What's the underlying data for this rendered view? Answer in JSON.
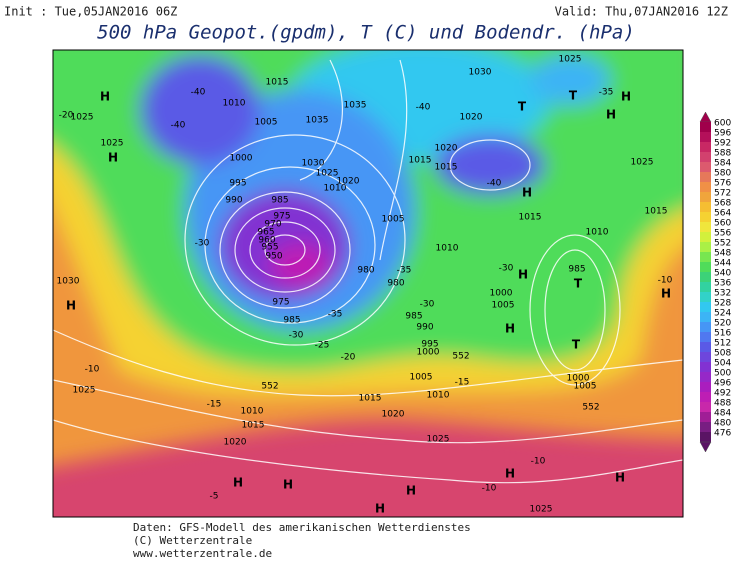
{
  "header": {
    "init": "Init : Tue,05JAN2016 06Z",
    "valid": "Valid: Thu,07JAN2016 12Z",
    "title": "500 hPa Geopot.(gpdm), T (C) und Bodendr. (hPa)"
  },
  "colorbar": {
    "levels": [
      600,
      596,
      592,
      588,
      584,
      580,
      576,
      572,
      568,
      564,
      560,
      556,
      552,
      548,
      544,
      540,
      536,
      532,
      528,
      524,
      520,
      516,
      512,
      508,
      504,
      500,
      496,
      492,
      488,
      484,
      480,
      476
    ],
    "colors": [
      "#a0004b",
      "#b4105a",
      "#c82864",
      "#d2416e",
      "#dc5a6e",
      "#e6785a",
      "#f09046",
      "#f0a53c",
      "#f5be32",
      "#f5d232",
      "#f0e63c",
      "#d2f03c",
      "#aaf046",
      "#78e650",
      "#50dc5a",
      "#3cd278",
      "#32d2a0",
      "#32d2c8",
      "#32c8f0",
      "#3cb4f5",
      "#4696f5",
      "#5078f0",
      "#5a5ae6",
      "#6e46dc",
      "#8232d2",
      "#9628c8",
      "#aa1ebe",
      "#be1eb4",
      "#c828aa",
      "#a01e96",
      "#781e82",
      "#5a1464"
    ]
  },
  "map_labels": [
    "H",
    "H",
    "1025",
    "1025",
    "-20",
    "1015",
    "1010",
    "-40",
    "-40",
    "1005",
    "1035",
    "1035",
    "1030",
    "1025",
    "1020",
    "1010",
    "1000",
    "995",
    "990",
    "985",
    "975",
    "970",
    "965",
    "960",
    "955",
    "950",
    "975",
    "985",
    "980",
    "980",
    "985",
    "990",
    "995",
    "1000",
    "1005",
    "1015",
    "1020",
    "1015",
    "1010",
    "1015",
    "1010",
    "1015",
    "1025",
    "1030",
    "1025",
    "T",
    "T",
    "H",
    "H",
    "-35",
    "-40",
    "1020",
    "-40",
    "H",
    "H",
    "1000",
    "1005",
    "H",
    "985",
    "T",
    "T",
    "1000",
    "1005",
    "H",
    "-10",
    "1030",
    "H",
    "-10",
    "1025",
    "1020",
    "1015",
    "1010",
    "1005",
    "1010",
    "1015",
    "1020",
    "1025",
    "1025",
    "H",
    "H",
    "H",
    "H",
    "H",
    "H",
    "-5",
    "-10",
    "-10",
    "-15",
    "-15",
    "-20",
    "-25",
    "-30",
    "-35",
    "-35",
    "-30",
    "-30",
    "-30",
    "552",
    "552",
    "552"
  ],
  "footer": [
    "Daten: GFS-Modell des amerikanischen Wetterdienstes",
    "(C) Wetterzentrale",
    "www.wetterzentrale.de"
  ]
}
